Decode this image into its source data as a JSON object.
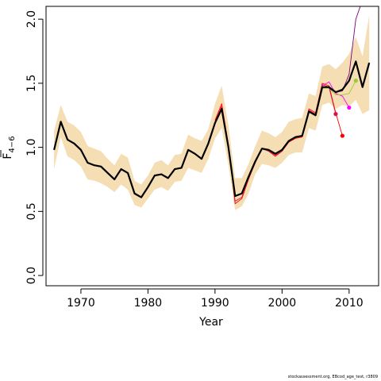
{
  "chart_data": {
    "type": "line",
    "xlabel": "Year",
    "ylabel_main": "F",
    "ylabel_sub": "4−6",
    "xlim": [
      1964.8,
      2014.4
    ],
    "ylim": [
      -0.08,
      2.1
    ],
    "x_ticks": [
      1970,
      1980,
      1990,
      2000,
      2010
    ],
    "y_ticks": [
      0.0,
      0.5,
      1.0,
      1.5,
      2.0
    ],
    "y_tick_labels": [
      "0.0",
      "0.5",
      "1.0",
      "1.5",
      "2.0"
    ],
    "x_tick_labels": [
      "1970",
      "1980",
      "1990",
      "2000",
      "2010"
    ],
    "colors": {
      "band": "#f5deb3",
      "main": "#000000",
      "retro_red": "#ff0000",
      "retro_magenta": "#ff00ff",
      "retro_purple": "#800080",
      "retro_green": "#9acd32",
      "retro_pink": "#ff69b4",
      "retro_crimson": "#dc143c"
    },
    "band": {
      "years": [
        1966,
        1967,
        1968,
        1969,
        1970,
        1971,
        1972,
        1973,
        1974,
        1975,
        1976,
        1977,
        1978,
        1979,
        1980,
        1981,
        1982,
        1983,
        1984,
        1985,
        1986,
        1987,
        1988,
        1989,
        1990,
        1991,
        1992,
        1993,
        1994,
        1995,
        1996,
        1997,
        1998,
        1999,
        2000,
        2001,
        2002,
        2003,
        2004,
        2005,
        2006,
        2007,
        2008,
        2009,
        2010,
        2011,
        2012,
        2013
      ],
      "upper": [
        1.13,
        1.33,
        1.2,
        1.17,
        1.12,
        1.01,
        0.99,
        0.97,
        0.91,
        0.86,
        0.95,
        0.92,
        0.74,
        0.71,
        0.78,
        0.88,
        0.9,
        0.86,
        0.94,
        0.95,
        1.1,
        1.07,
        1.05,
        1.14,
        1.34,
        1.48,
        1.17,
        0.76,
        0.76,
        0.87,
        1.01,
        1.13,
        1.11,
        1.08,
        1.12,
        1.2,
        1.22,
        1.23,
        1.42,
        1.4,
        1.63,
        1.65,
        1.61,
        1.66,
        1.73,
        1.86,
        1.71,
        2.03
      ],
      "lower": [
        0.83,
        1.08,
        0.93,
        0.9,
        0.85,
        0.75,
        0.74,
        0.72,
        0.69,
        0.65,
        0.71,
        0.67,
        0.55,
        0.53,
        0.6,
        0.67,
        0.69,
        0.66,
        0.73,
        0.74,
        0.84,
        0.82,
        0.8,
        0.91,
        1.07,
        1.15,
        0.86,
        0.51,
        0.54,
        0.64,
        0.79,
        0.87,
        0.86,
        0.84,
        0.88,
        0.94,
        0.96,
        0.96,
        1.15,
        1.13,
        1.33,
        1.35,
        1.3,
        1.33,
        1.32,
        1.37,
        1.26,
        1.29
      ]
    },
    "series": [
      {
        "role": "main",
        "x": [
          1966,
          1967,
          1968,
          1969,
          1970,
          1971,
          1972,
          1973,
          1974,
          1975,
          1976,
          1977,
          1978,
          1979,
          1980,
          1981,
          1982,
          1983,
          1984,
          1985,
          1986,
          1987,
          1988,
          1989,
          1990,
          1991,
          1992,
          1993,
          1994,
          1995,
          1996,
          1997,
          1998,
          1999,
          2000,
          2001,
          2002,
          2003,
          2004,
          2005,
          2006,
          2007,
          2008,
          2009,
          2010,
          2011,
          2012,
          2013
        ],
        "y": [
          0.98,
          1.2,
          1.06,
          1.03,
          0.98,
          0.88,
          0.86,
          0.85,
          0.8,
          0.75,
          0.83,
          0.8,
          0.64,
          0.61,
          0.69,
          0.78,
          0.79,
          0.76,
          0.83,
          0.84,
          0.98,
          0.95,
          0.91,
          1.03,
          1.19,
          1.3,
          1.0,
          0.62,
          0.64,
          0.77,
          0.89,
          0.99,
          0.98,
          0.95,
          0.98,
          1.05,
          1.08,
          1.09,
          1.28,
          1.25,
          1.47,
          1.47,
          1.43,
          1.45,
          1.52,
          1.67,
          1.47,
          1.66
        ]
      },
      {
        "role": "retro_red",
        "x": [
          1990,
          1991,
          1992,
          1993,
          1994,
          1995,
          1996,
          1997,
          1998,
          1999,
          2000,
          2001,
          2002,
          2003,
          2004,
          2005,
          2006,
          2007,
          2008,
          2009
        ],
        "y": [
          1.21,
          1.34,
          1.02,
          0.56,
          0.6,
          0.75,
          0.88,
          0.99,
          0.97,
          0.93,
          0.97,
          1.04,
          1.07,
          1.08,
          1.3,
          1.27,
          1.5,
          1.48,
          1.27,
          1.09
        ]
      },
      {
        "role": "retro_crimson",
        "x": [
          1990,
          1991,
          1992,
          1993,
          1994,
          1995,
          1996,
          1997,
          1998,
          1999,
          2000,
          2001,
          2002,
          2003,
          2004,
          2005,
          2006,
          2007,
          2008
        ],
        "y": [
          1.2,
          1.32,
          1.01,
          0.58,
          0.61,
          0.76,
          0.88,
          0.99,
          0.97,
          0.94,
          0.97,
          1.05,
          1.08,
          1.09,
          1.29,
          1.26,
          1.49,
          1.47,
          1.26
        ]
      },
      {
        "role": "retro_magenta",
        "x": [
          2004,
          2005,
          2006,
          2007,
          2008,
          2009,
          2010
        ],
        "y": [
          1.29,
          1.25,
          1.48,
          1.51,
          1.42,
          1.4,
          1.31
        ]
      },
      {
        "role": "retro_green",
        "x": [
          2006,
          2007,
          2008,
          2009,
          2010,
          2011
        ],
        "y": [
          1.46,
          1.46,
          1.41,
          1.41,
          1.42,
          1.52
        ]
      },
      {
        "role": "retro_purple",
        "x": [
          2007,
          2008,
          2009,
          2010,
          2011,
          2012
        ],
        "y": [
          1.46,
          1.43,
          1.44,
          1.57,
          2.0,
          2.15
        ]
      }
    ],
    "endpoints": [
      {
        "role": "retro_red",
        "x": 2009,
        "y": 1.09
      },
      {
        "role": "retro_crimson",
        "x": 2008,
        "y": 1.26
      },
      {
        "role": "retro_magenta",
        "x": 2010,
        "y": 1.31
      },
      {
        "role": "retro_green",
        "x": 2011,
        "y": 1.52
      }
    ],
    "grid": false,
    "legend": "none"
  },
  "footer_text": "stockassessment.org, EBcod_age_test, r3809"
}
